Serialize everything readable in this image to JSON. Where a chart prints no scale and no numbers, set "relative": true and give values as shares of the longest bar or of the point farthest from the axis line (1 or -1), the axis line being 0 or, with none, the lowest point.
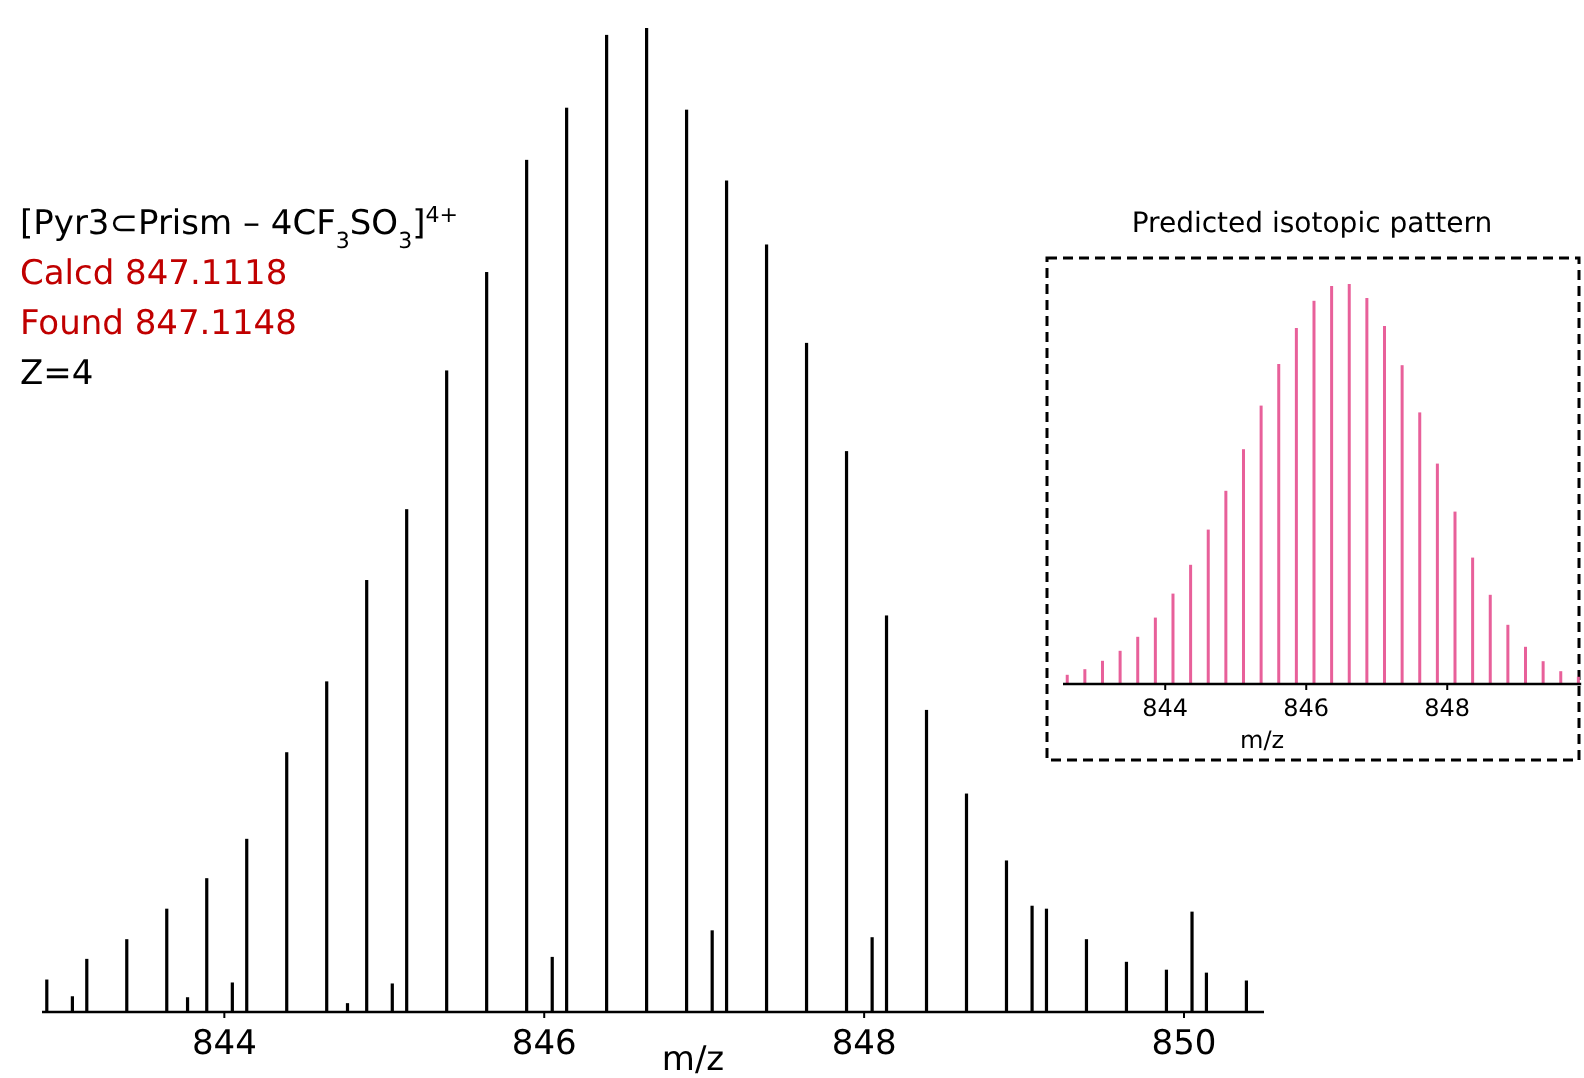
{
  "chart_data": [
    {
      "type": "bar",
      "relative": true,
      "xlabel": "m/z",
      "xlim": [
        842.86,
        850.5
      ],
      "xticks": [
        844,
        846,
        848,
        850
      ],
      "annotations": [
        "[Pyr3⊂Prism – 4CF$_{3}$SO$_{3}$]$^{4+}$",
        "Calcd 847.1118",
        "Found 847.1148",
        "Z=4"
      ],
      "series": [
        {
          "color": "#000000",
          "x": [
            842.89,
            843.14,
            843.39,
            843.64,
            843.89,
            844.14,
            844.39,
            844.64,
            844.89,
            845.14,
            845.39,
            845.64,
            845.89,
            846.14,
            846.39,
            846.64,
            846.89,
            847.14,
            847.39,
            847.64,
            847.89,
            848.14,
            848.39,
            848.64,
            848.89,
            849.14,
            849.39,
            849.64,
            849.89,
            850.14,
            850.39
          ],
          "values": [
            0.033,
            0.054,
            0.074,
            0.105,
            0.136,
            0.176,
            0.264,
            0.336,
            0.439,
            0.511,
            0.652,
            0.752,
            0.866,
            0.919,
            0.993,
            1,
            0.917,
            0.845,
            0.78,
            0.68,
            0.57,
            0.403,
            0.307,
            0.222,
            0.154,
            0.105,
            0.074,
            0.051,
            0.043,
            0.04,
            0.032
          ]
        },
        {
          "color": "#000000",
          "x": [
            843.05,
            843.77,
            844.05,
            844.77,
            845.05,
            846.05,
            847.05,
            848.05,
            849.05,
            850.05
          ],
          "values": [
            0.016,
            0.015,
            0.03,
            0.009,
            0.029,
            0.056,
            0.083,
            0.076,
            0.108,
            0.102
          ]
        }
      ]
    },
    {
      "type": "bar",
      "relative": true,
      "title": "Predicted isotopic pattern",
      "xlabel": "m/z",
      "xlim": [
        842.55,
        849.9
      ],
      "xticks": [
        844,
        846,
        848
      ],
      "series": [
        {
          "color": "#e8609a",
          "x": [
            842.61,
            842.86,
            843.11,
            843.36,
            843.61,
            843.86,
            844.11,
            844.36,
            844.61,
            844.86,
            845.11,
            845.36,
            845.61,
            845.86,
            846.11,
            846.36,
            846.61,
            846.86,
            847.11,
            847.36,
            847.61,
            847.86,
            848.11,
            848.36,
            848.61,
            848.86,
            849.11,
            849.36,
            849.61,
            849.86
          ],
          "values": [
            0.023,
            0.037,
            0.058,
            0.083,
            0.118,
            0.166,
            0.226,
            0.298,
            0.386,
            0.483,
            0.587,
            0.696,
            0.8,
            0.89,
            0.958,
            0.995,
            1,
            0.965,
            0.895,
            0.797,
            0.679,
            0.551,
            0.431,
            0.316,
            0.223,
            0.148,
            0.093,
            0.057,
            0.032,
            0.018
          ]
        }
      ]
    }
  ]
}
